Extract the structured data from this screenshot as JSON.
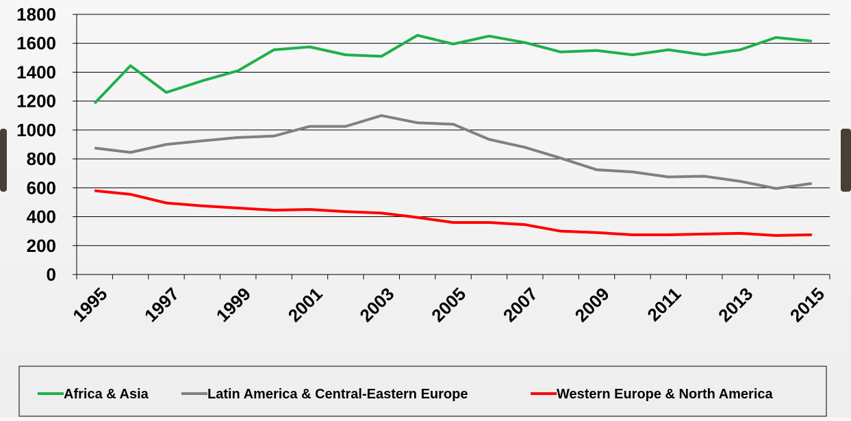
{
  "chart_data": {
    "type": "line",
    "categories": [
      "1995",
      null,
      "1997",
      null,
      "1999",
      null,
      "2001",
      null,
      "2003",
      null,
      "2005",
      null,
      "2007",
      null,
      "2009",
      null,
      "2011",
      null,
      "2013",
      null,
      "2015"
    ],
    "series": [
      {
        "name": "Africa & Asia",
        "color": "#1fb04b",
        "values": [
          1185,
          1445,
          1260,
          1340,
          1410,
          1555,
          1575,
          1520,
          1510,
          1655,
          1595,
          1650,
          1605,
          1540,
          1550,
          1520,
          1555,
          1520,
          1555,
          1640,
          1615
        ]
      },
      {
        "name": "Latin America & Central-Eastern Europe",
        "color": "#808080",
        "values": [
          875,
          845,
          900,
          925,
          948,
          958,
          1025,
          1025,
          1100,
          1050,
          1040,
          935,
          880,
          805,
          725,
          710,
          675,
          680,
          645,
          595,
          630
        ]
      },
      {
        "name": "Western Europe & North America",
        "color": "#ff0000",
        "values": [
          580,
          555,
          495,
          475,
          460,
          445,
          450,
          435,
          425,
          395,
          360,
          360,
          345,
          300,
          290,
          275,
          275,
          280,
          285,
          270,
          275
        ]
      }
    ],
    "ylim": [
      0,
      1800
    ],
    "yticks": [
      0,
      200,
      400,
      600,
      800,
      1000,
      1200,
      1400,
      1600,
      1800
    ],
    "grid": true,
    "legend": "bottom"
  }
}
